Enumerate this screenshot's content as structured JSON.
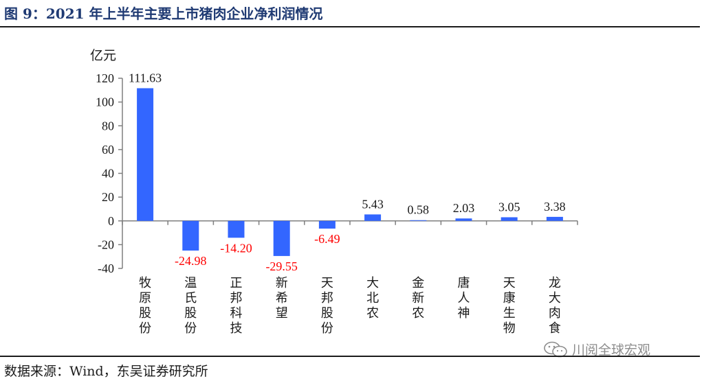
{
  "figure_title": "图 9：2021 年上半年主要上市猪肉企业净利润情况",
  "source": "数据来源：Wind，东吴证券研究所",
  "watermark": "川阅全球宏观",
  "colors": {
    "bar": "#3366ff",
    "positive_label": "#1a1a1a",
    "negative_label": "#ff0000",
    "title": "#1f3a73"
  },
  "chart_data": {
    "type": "bar",
    "title": "",
    "xlabel": "",
    "ylabel": "亿元",
    "ylim": [
      -40,
      120
    ],
    "yticks": [
      -40,
      -20,
      0,
      20,
      40,
      60,
      80,
      100,
      120
    ],
    "categories": [
      "牧原股份",
      "温氏股份",
      "正邦科技",
      "新希望",
      "天邦股份",
      "大北农",
      "金新农",
      "唐人神",
      "天康生物",
      "龙大肉食"
    ],
    "values": [
      111.63,
      -24.98,
      -14.2,
      -29.55,
      -6.49,
      5.43,
      0.58,
      2.03,
      3.05,
      3.38
    ],
    "value_labels": [
      "111.63",
      "-24.98",
      "-14.20",
      "-29.55",
      "-6.49",
      "5.43",
      "0.58",
      "2.03",
      "3.05",
      "3.38"
    ],
    "grid": false,
    "legend": "none"
  }
}
